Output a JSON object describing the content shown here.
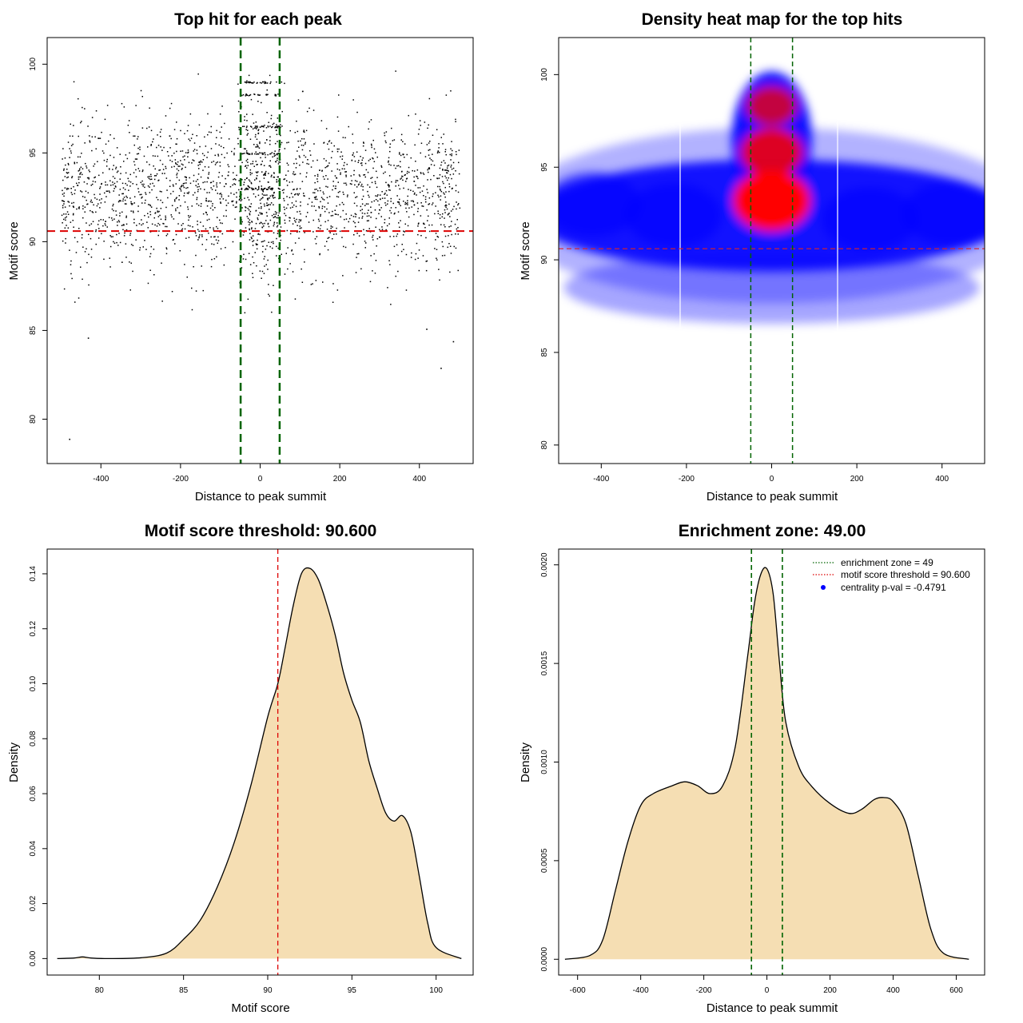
{
  "chart_data": [
    {
      "type": "scatter",
      "title": "Top hit for each peak",
      "xlabel": "Distance to peak summit",
      "ylabel": "Motif score",
      "xlim": [
        -535,
        535
      ],
      "ylim": [
        77.5,
        101.5
      ],
      "xticks": [
        -400,
        -200,
        0,
        200,
        400
      ],
      "xtick_labels": [
        "-400",
        "-200",
        "0",
        "200",
        "400"
      ],
      "yticks": [
        80,
        85,
        90,
        95,
        100
      ],
      "ytick_labels": [
        "80",
        "85",
        "90",
        "95",
        "100"
      ],
      "point_count": 2400,
      "hline": 90.6,
      "vlines": [
        -49,
        49
      ],
      "threshold_color": "#dd0000",
      "zone_color": "#006400",
      "point_color": "#000000",
      "outliers": [
        {
          "x": -480,
          "y": 78.9
        },
        {
          "x": 453,
          "y": 82.9
        },
        {
          "x": -433,
          "y": 84.6
        },
        {
          "x": 417,
          "y": 85.1
        },
        {
          "x": 484,
          "y": 84.4
        }
      ]
    },
    {
      "type": "heatmap",
      "title": "Density heat map for the top hits",
      "xlabel": "Distance to peak summit",
      "ylabel": "Motif score",
      "xlim": [
        -500,
        500
      ],
      "ylim": [
        79,
        102
      ],
      "xticks": [
        -400,
        -200,
        0,
        200,
        400
      ],
      "xtick_labels": [
        "-400",
        "-200",
        "0",
        "200",
        "400"
      ],
      "yticks": [
        80,
        85,
        90,
        95,
        100
      ],
      "ytick_labels": [
        "80",
        "85",
        "90",
        "95",
        "100"
      ],
      "hline": 90.6,
      "vlines": [
        -49,
        49
      ],
      "colors": [
        "#ffffff",
        "#0000ff",
        "#ff0000"
      ],
      "hotspots": [
        {
          "x": 0,
          "y": 93.2,
          "weight": 1.0
        },
        {
          "x": 0,
          "y": 95.8,
          "weight": 0.75
        },
        {
          "x": 0,
          "y": 98.3,
          "weight": 0.55
        },
        {
          "x": -230,
          "y": 92.4,
          "weight": 0.45
        },
        {
          "x": 230,
          "y": 92.2,
          "weight": 0.45
        },
        {
          "x": -420,
          "y": 93.0,
          "weight": 0.35
        },
        {
          "x": 420,
          "y": 92.5,
          "weight": 0.35
        }
      ]
    },
    {
      "type": "area",
      "title": "Motif score threshold: 90.600",
      "xlabel": "Motif score",
      "ylabel": "Density",
      "xlim": [
        76.9,
        102.2
      ],
      "ylim": [
        -0.006,
        0.149
      ],
      "xticks": [
        80,
        85,
        90,
        95,
        100
      ],
      "xtick_labels": [
        "80",
        "85",
        "90",
        "95",
        "100"
      ],
      "yticks": [
        0,
        0.02,
        0.04,
        0.06,
        0.08,
        0.1,
        0.12,
        0.14
      ],
      "ytick_labels": [
        "0.00",
        "0.02",
        "0.04",
        "0.06",
        "0.08",
        "0.10",
        "0.12",
        "0.14"
      ],
      "x": [
        77.5,
        78.5,
        79.0,
        79.5,
        80.5,
        82.5,
        84.0,
        85.0,
        86.0,
        87.0,
        88.0,
        89.0,
        90.0,
        90.6,
        91.0,
        91.5,
        92.0,
        92.5,
        93.0,
        93.5,
        94.0,
        94.5,
        95.0,
        95.5,
        96.0,
        96.5,
        97.0,
        97.5,
        98.0,
        98.5,
        99.0,
        99.5,
        100.0,
        101.5
      ],
      "y": [
        0.0,
        0.0002,
        0.0006,
        0.0002,
        0.0,
        0.0003,
        0.002,
        0.007,
        0.014,
        0.026,
        0.042,
        0.063,
        0.088,
        0.1,
        0.112,
        0.128,
        0.14,
        0.142,
        0.138,
        0.129,
        0.118,
        0.104,
        0.094,
        0.086,
        0.072,
        0.062,
        0.053,
        0.05,
        0.052,
        0.046,
        0.03,
        0.013,
        0.004,
        0.0
      ],
      "vline": 90.6,
      "fill_color": "#f5deb3",
      "line_color": "#000000",
      "threshold_color": "#dd0000"
    },
    {
      "type": "area",
      "title": "Enrichment zone: 49.00",
      "xlabel": "Distance to peak summit",
      "ylabel": "Density",
      "xlim": [
        -660,
        690
      ],
      "ylim": [
        -8e-05,
        0.00208
      ],
      "xticks": [
        -600,
        -400,
        -200,
        0,
        200,
        400,
        600
      ],
      "xtick_labels": [
        "-600",
        "-400",
        "-200",
        "0",
        "200",
        "400",
        "600"
      ],
      "yticks": [
        0,
        0.0005,
        0.001,
        0.0015,
        0.002
      ],
      "ytick_labels": [
        "0.0000",
        "0.0005",
        "0.0010",
        "0.0015",
        "0.0020"
      ],
      "x": [
        -640,
        -560,
        -520,
        -480,
        -440,
        -400,
        -360,
        -300,
        -260,
        -220,
        -180,
        -140,
        -100,
        -60,
        -40,
        -20,
        0,
        20,
        40,
        60,
        100,
        140,
        200,
        260,
        300,
        340,
        370,
        400,
        440,
        480,
        520,
        560,
        640
      ],
      "y": [
        0.0,
        2e-05,
        0.0001,
        0.00035,
        0.0006,
        0.00078,
        0.00084,
        0.00088,
        0.0009,
        0.00088,
        0.00084,
        0.00088,
        0.00108,
        0.00155,
        0.0018,
        0.00195,
        0.00198,
        0.00185,
        0.0015,
        0.0012,
        0.00098,
        0.00088,
        0.00079,
        0.00074,
        0.00076,
        0.00081,
        0.00082,
        0.0008,
        0.00069,
        0.00042,
        0.00015,
        3e-05,
        0.0
      ],
      "vlines": [
        -49,
        49
      ],
      "fill_color": "#f5deb3",
      "line_color": "#000000",
      "zone_color": "#006400",
      "legend": {
        "position": "top-right",
        "entries": [
          {
            "label": "enrichment zone = 49",
            "color": "#006400",
            "symbol": "dotted-line"
          },
          {
            "label": "motif score threshold = 90.600",
            "color": "#dd0000",
            "symbol": "dotted-line"
          },
          {
            "label": "centrality p-val = -0.4791",
            "color": "#0000ff",
            "symbol": "dot"
          }
        ]
      }
    }
  ]
}
